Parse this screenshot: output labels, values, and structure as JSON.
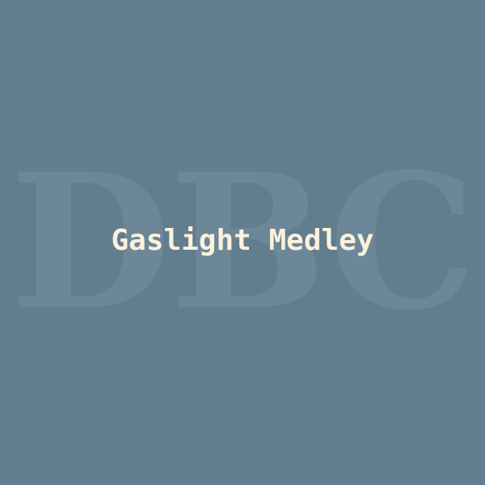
{
  "cover": {
    "watermark_text": "DBC",
    "title": "Gaslight Medley"
  },
  "colors": {
    "background": "#617d8e",
    "watermark": "#6c8798",
    "title": "#fbf1dc"
  }
}
